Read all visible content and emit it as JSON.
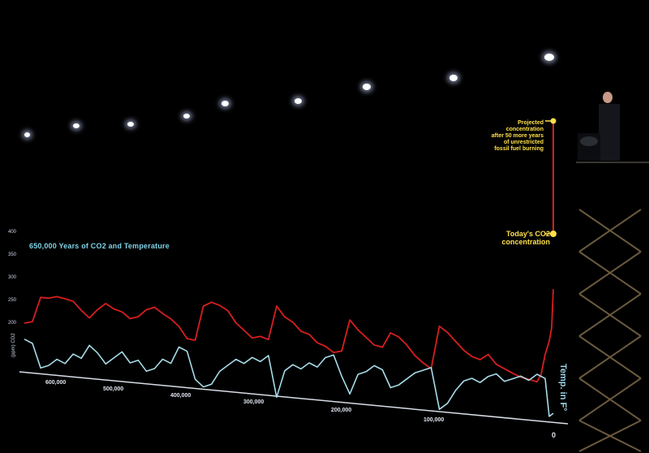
{
  "chart_data": {
    "type": "line",
    "title": "650,000 Years of CO2 and Temperature",
    "ylabel": "(ppm) CO2",
    "y_ticks": [
      "400",
      "350",
      "300",
      "250",
      "200"
    ],
    "x_ticks": [
      "600,000",
      "500,000",
      "400,000",
      "300,000",
      "200,000",
      "100,000",
      "0"
    ],
    "series": [
      {
        "name": "CO2",
        "color": "#d81e1e",
        "x": [
          650000,
          640000,
          630000,
          620000,
          610000,
          600000,
          590000,
          580000,
          570000,
          560000,
          550000,
          540000,
          530000,
          520000,
          510000,
          500000,
          490000,
          480000,
          470000,
          460000,
          450000,
          440000,
          430000,
          420000,
          410000,
          400000,
          390000,
          380000,
          370000,
          360000,
          350000,
          340000,
          330000,
          320000,
          310000,
          300000,
          290000,
          280000,
          270000,
          260000,
          250000,
          240000,
          230000,
          220000,
          210000,
          200000,
          190000,
          180000,
          170000,
          160000,
          150000,
          140000,
          130000,
          120000,
          110000,
          100000,
          90000,
          80000,
          70000,
          60000,
          50000,
          40000,
          30000,
          20000,
          15000,
          10000,
          5000,
          2000,
          0
        ],
        "values": [
          200,
          205,
          260,
          260,
          265,
          262,
          258,
          240,
          225,
          245,
          260,
          250,
          245,
          232,
          238,
          255,
          262,
          250,
          240,
          225,
          200,
          198,
          275,
          285,
          280,
          270,
          245,
          230,
          215,
          220,
          215,
          290,
          268,
          258,
          240,
          235,
          218,
          212,
          200,
          205,
          275,
          255,
          240,
          225,
          222,
          255,
          248,
          232,
          210,
          196,
          185,
          280,
          268,
          250,
          232,
          220,
          215,
          228,
          208,
          200,
          192,
          185,
          182,
          178,
          195,
          240,
          270,
          300,
          385
        ]
      },
      {
        "name": "Temp. in F°",
        "color": "#a6dce8",
        "x": [
          650000,
          640000,
          630000,
          620000,
          610000,
          600000,
          590000,
          580000,
          570000,
          560000,
          550000,
          540000,
          530000,
          520000,
          510000,
          500000,
          490000,
          480000,
          470000,
          460000,
          450000,
          440000,
          430000,
          420000,
          410000,
          400000,
          390000,
          380000,
          370000,
          360000,
          350000,
          340000,
          330000,
          320000,
          310000,
          300000,
          290000,
          280000,
          270000,
          260000,
          250000,
          240000,
          230000,
          220000,
          210000,
          200000,
          190000,
          180000,
          170000,
          160000,
          150000,
          140000,
          130000,
          120000,
          110000,
          100000,
          90000,
          80000,
          70000,
          60000,
          50000,
          40000,
          30000,
          20000,
          10000,
          5000,
          0
        ],
        "values": [
          -6,
          -5,
          2,
          1,
          -1,
          0,
          -3,
          -2,
          -6,
          -4,
          -1,
          -3,
          -5,
          -2,
          -3,
          0,
          -1,
          -4,
          -3,
          -8,
          -7,
          1,
          3,
          2,
          -2,
          -4,
          -6,
          -5,
          -7,
          -6,
          -8,
          4,
          -4,
          -6,
          -5,
          -7,
          -6,
          -9,
          -10,
          -4,
          1,
          -5,
          -6,
          -8,
          -7,
          -2,
          -3,
          -5,
          -7,
          -8,
          -9,
          3,
          1,
          -3,
          -6,
          -7,
          -6,
          -8,
          -9,
          -7,
          -8,
          -9,
          -8,
          -10,
          -9,
          2,
          1
        ]
      }
    ],
    "annotations": {
      "projected": [
        "Projected",
        "concentration",
        "after 50 more years",
        "of unrestricted",
        "fossil fuel burning"
      ],
      "today": [
        "Today's CO2",
        "concentration"
      ]
    },
    "grid": false,
    "legend": "none"
  },
  "labels": {
    "temp_axis": "Temp. in F°"
  }
}
